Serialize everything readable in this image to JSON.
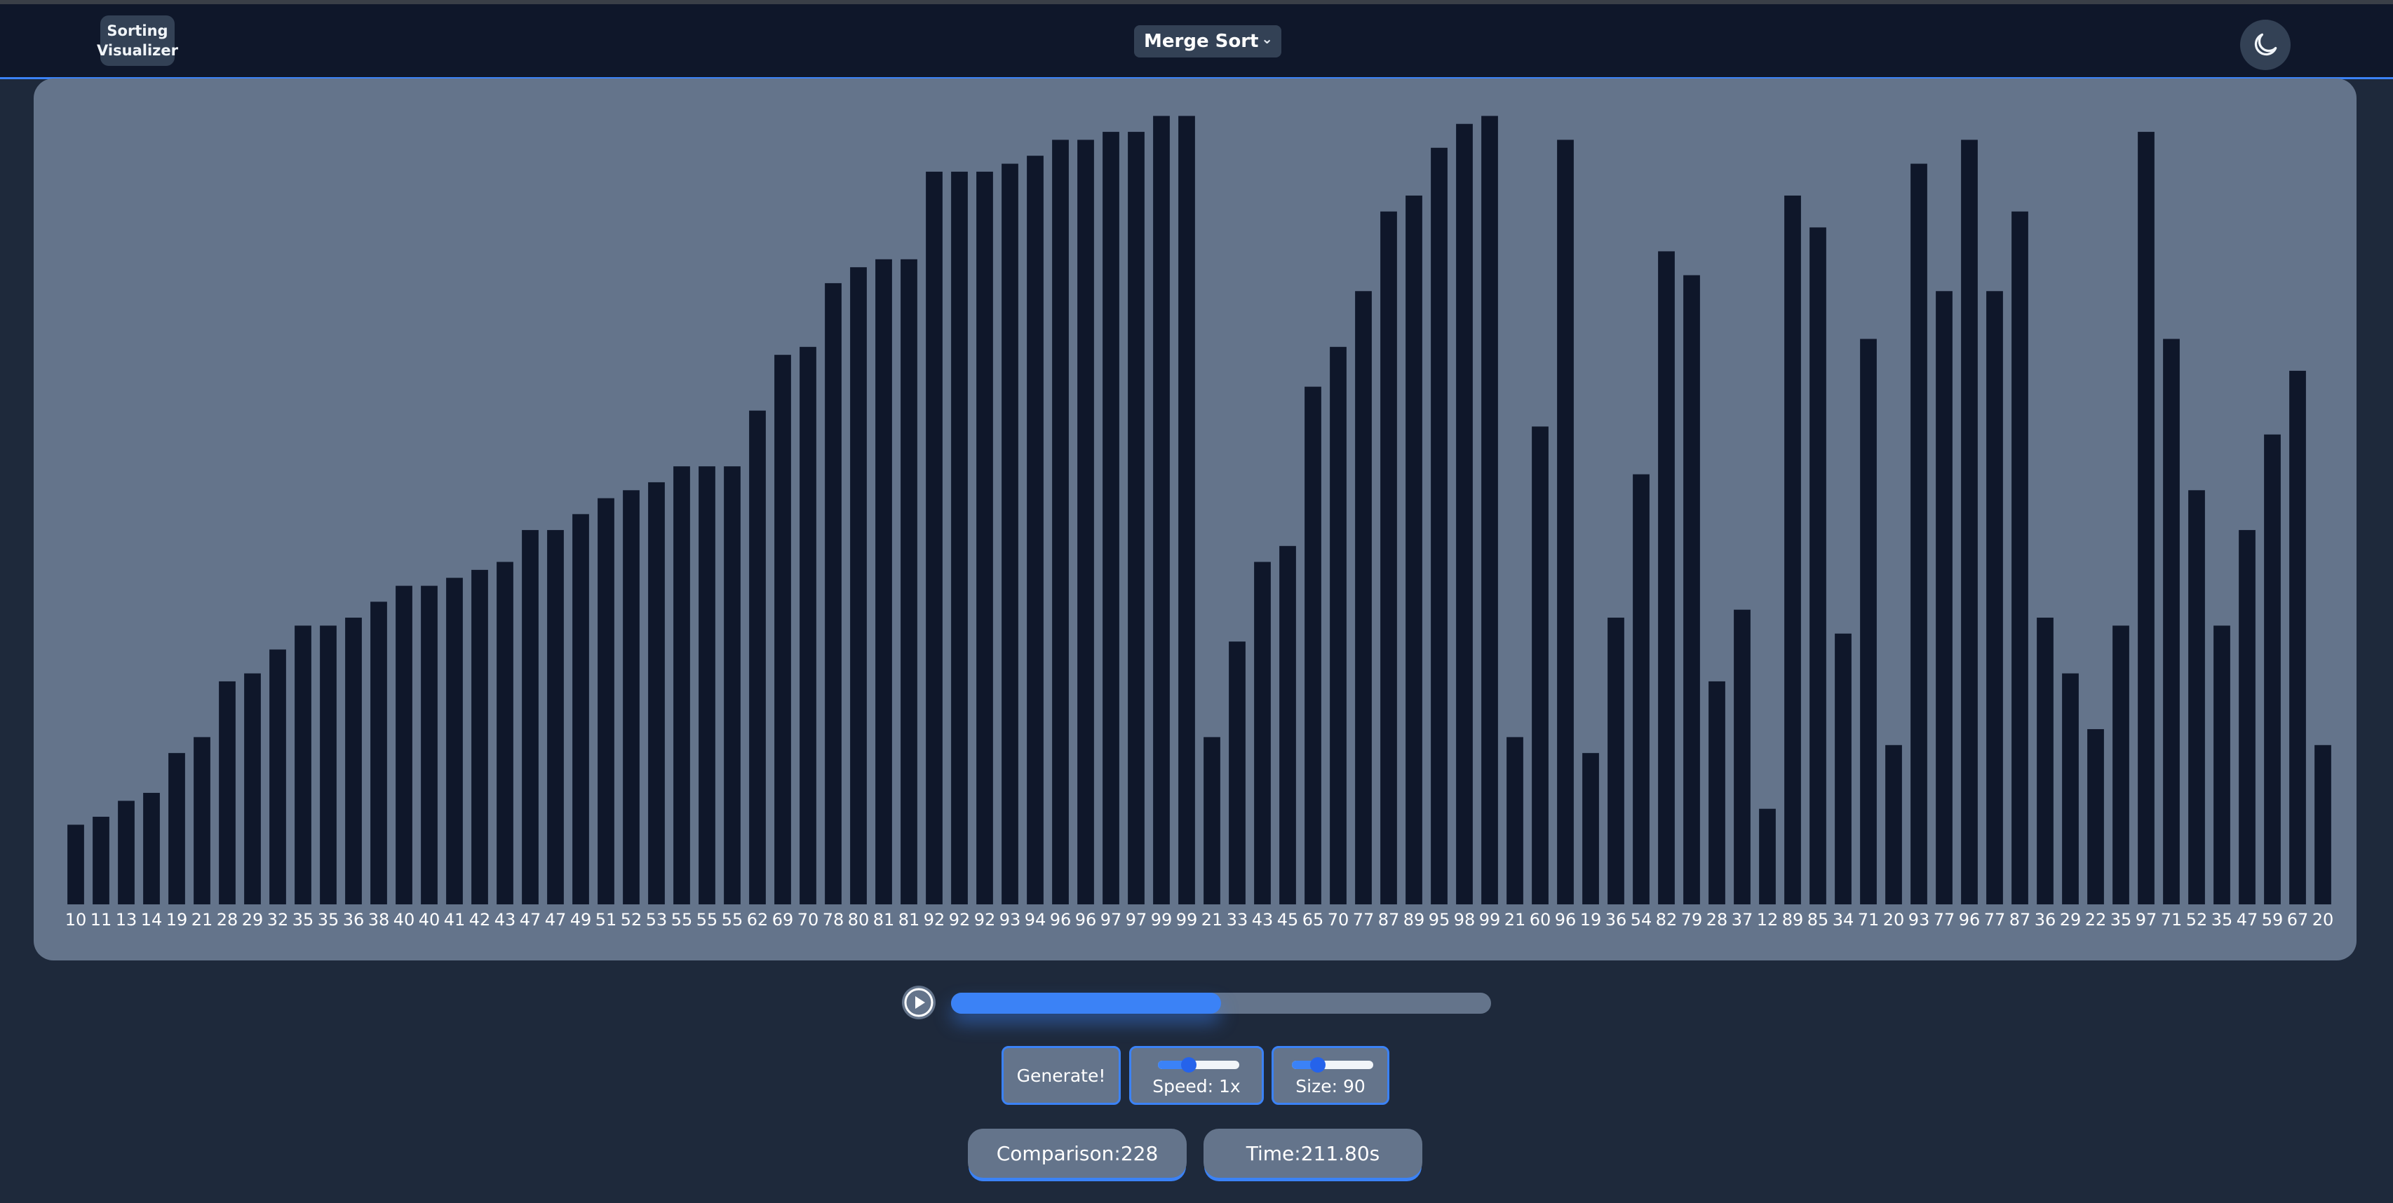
{
  "header": {
    "logo_line1": "Sorting",
    "logo_line2": "Visualizer",
    "algorithm": "Merge Sort",
    "theme_icon": "moon-icon"
  },
  "chart_data": {
    "type": "bar",
    "values": [
      10,
      11,
      13,
      14,
      19,
      21,
      28,
      29,
      32,
      35,
      35,
      36,
      38,
      40,
      40,
      41,
      42,
      43,
      47,
      47,
      49,
      51,
      52,
      53,
      55,
      55,
      55,
      62,
      69,
      70,
      78,
      80,
      81,
      81,
      92,
      92,
      92,
      93,
      94,
      96,
      96,
      97,
      97,
      99,
      99,
      21,
      33,
      43,
      45,
      65,
      70,
      77,
      87,
      89,
      95,
      98,
      99,
      21,
      60,
      96,
      19,
      36,
      54,
      82,
      79,
      28,
      37,
      12,
      89,
      85,
      34,
      71,
      20,
      93,
      77,
      96,
      77,
      87,
      36,
      29,
      22,
      35,
      97,
      71,
      52,
      35,
      47,
      59,
      67,
      20
    ],
    "ylim": [
      0,
      100
    ],
    "bar_color": "#0f172a"
  },
  "player": {
    "play_icon": "play-icon",
    "progress": 0.5
  },
  "controls": {
    "generate_label": "Generate!",
    "speed_label": "Speed: 1x",
    "speed_value": 0.38,
    "size_label": "Size: 90",
    "size_value": 0.32
  },
  "stats": {
    "comparison": "Comparison:228",
    "time": "Time:211.80s"
  },
  "colors": {
    "background": "#1e293b",
    "navbar": "#0f172a",
    "panel": "#64748b",
    "accent": "#3b82f6"
  }
}
